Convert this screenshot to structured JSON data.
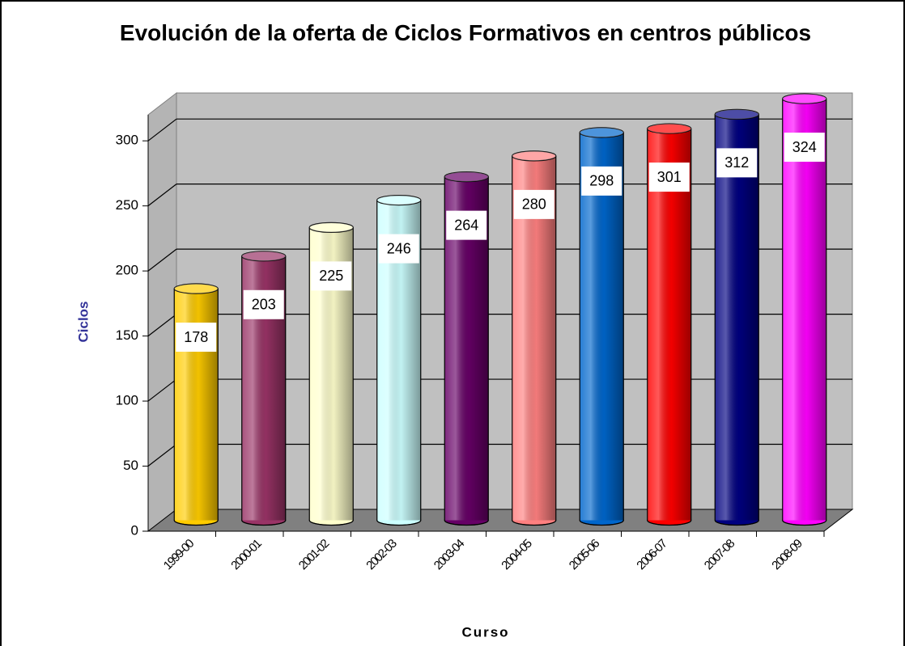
{
  "chart_data": {
    "type": "bar",
    "title": "Evolución de la oferta de Ciclos Formativos en centros públicos",
    "y_label": "Ciclos",
    "x_label": "Curso",
    "categories": [
      "1999-00",
      "2000-01",
      "2001-02",
      "2002-03",
      "2003-04",
      "2004-05",
      "2005-06",
      "2006-07",
      "2007-08",
      "2008-09"
    ],
    "values": [
      178,
      203,
      225,
      246,
      264,
      280,
      298,
      301,
      312,
      324
    ],
    "colors": [
      "#ffcc00",
      "#993366",
      "#ffffcc",
      "#ccffff",
      "#660066",
      "#ff8080",
      "#0066cc",
      "#ff0000",
      "#000080",
      "#ff00ff"
    ],
    "ylim": [
      0,
      320
    ],
    "yticks": [
      0,
      50,
      100,
      150,
      200,
      250,
      300
    ],
    "grid": true
  }
}
